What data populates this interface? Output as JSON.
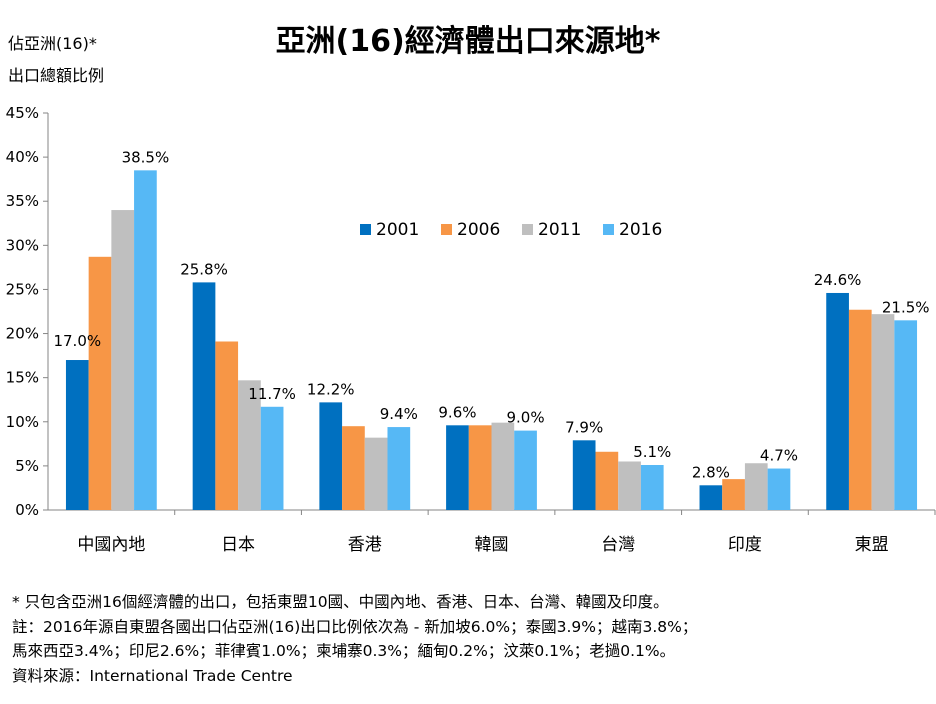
{
  "chart_data": {
    "type": "bar",
    "title": "亞洲(16)經濟體出口來源地*",
    "ylabel_line1": "佔亞洲(16)*",
    "ylabel_line2": "出口總額比例",
    "categories": [
      "中國內地",
      "日本",
      "香港",
      "韓國",
      "台灣",
      "印度",
      "東盟"
    ],
    "y_ticks": [
      "0%",
      "5%",
      "10%",
      "15%",
      "20%",
      "25%",
      "30%",
      "35%",
      "40%",
      "45%"
    ],
    "ylim": [
      0,
      45
    ],
    "legend_position": "top-center",
    "series": [
      {
        "name": "2001",
        "color": "#0070c0",
        "values": [
          17.0,
          25.8,
          12.2,
          9.6,
          7.9,
          2.8,
          24.6
        ]
      },
      {
        "name": "2006",
        "color": "#f79646",
        "values": [
          28.7,
          19.1,
          9.5,
          9.6,
          6.6,
          3.5,
          22.7
        ]
      },
      {
        "name": "2011",
        "color": "#bfbfbf",
        "values": [
          34.0,
          14.7,
          8.2,
          9.9,
          5.5,
          5.3,
          22.2
        ]
      },
      {
        "name": "2016",
        "color": "#56b8f5",
        "values": [
          38.5,
          11.7,
          9.4,
          9.0,
          5.1,
          4.7,
          21.5
        ]
      }
    ],
    "data_labels": [
      {
        "series": 0,
        "index": 0,
        "text": "17.0%"
      },
      {
        "series": 3,
        "index": 0,
        "text": "38.5%"
      },
      {
        "series": 0,
        "index": 1,
        "text": "25.8%"
      },
      {
        "series": 3,
        "index": 1,
        "text": "11.7%"
      },
      {
        "series": 0,
        "index": 2,
        "text": "12.2%"
      },
      {
        "series": 3,
        "index": 2,
        "text": "9.4%"
      },
      {
        "series": 0,
        "index": 3,
        "text": "9.6%"
      },
      {
        "series": 3,
        "index": 3,
        "text": "9.0%"
      },
      {
        "series": 0,
        "index": 4,
        "text": "7.9%"
      },
      {
        "series": 3,
        "index": 4,
        "text": "5.1%"
      },
      {
        "series": 0,
        "index": 5,
        "text": "2.8%"
      },
      {
        "series": 3,
        "index": 5,
        "text": "4.7%"
      },
      {
        "series": 0,
        "index": 6,
        "text": "24.6%"
      },
      {
        "series": 3,
        "index": 6,
        "text": "21.5%"
      }
    ]
  },
  "notes": {
    "line1": "* 只包含亞洲16個經濟體的出口，包括東盟10國、中國內地、香港、日本、台灣、韓國及印度。",
    "line2": "註：2016年源自東盟各國出口佔亞洲(16)出口比例依次為 - 新加坡6.0%；泰國3.9%；越南3.8%；",
    "line3": "馬來西亞3.4%；印尼2.6%；菲律賓1.0%；柬埔寨0.3%；緬甸0.2%；汶萊0.1%；老撾0.1%。",
    "line4": "資料來源：International Trade Centre"
  }
}
